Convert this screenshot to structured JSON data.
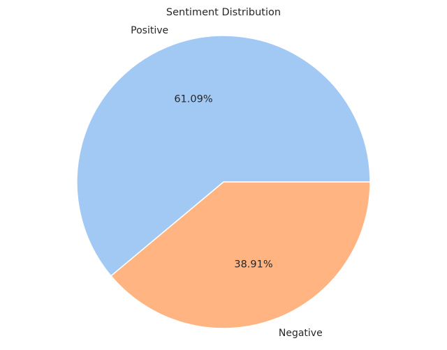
{
  "chart_data": {
    "type": "pie",
    "title": "Sentiment Distribution",
    "slices": [
      {
        "label": "Positive",
        "value": 61.09,
        "pct_label": "61.09%",
        "color": "#a1c9f4"
      },
      {
        "label": "Negative",
        "value": 38.91,
        "pct_label": "38.91%",
        "color": "#ffb482"
      }
    ],
    "start_angle_deg": 0,
    "direction": "counterclockwise",
    "edge_color": "#ffffff"
  }
}
